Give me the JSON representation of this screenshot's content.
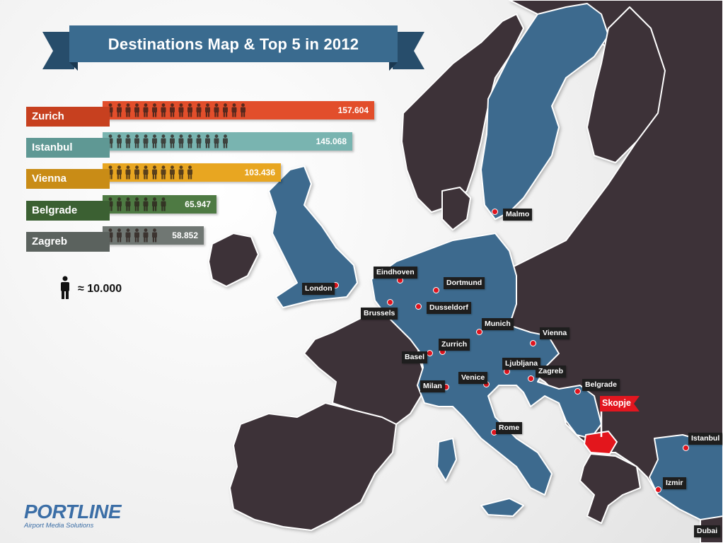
{
  "title": "Destinations Map & Top 5 in 2012",
  "chart_data": {
    "type": "bar",
    "orientation": "horizontal",
    "title": "Destinations Map & Top 5 in 2012",
    "categories": [
      "Zurich",
      "Istanbul",
      "Vienna",
      "Belgrade",
      "Zagreb"
    ],
    "values": [
      157604,
      145068,
      103436,
      65947,
      58852
    ],
    "value_labels": [
      "157.604",
      "145.068",
      "103.436",
      "65.947",
      "58.852"
    ],
    "person_icons": [
      16,
      14,
      10,
      7,
      6
    ],
    "colors": [
      "#e24e2b",
      "#79b4b0",
      "#e8a621",
      "#4e7a43",
      "#707773"
    ],
    "label_colors": [
      "#c7401f",
      "#5f9894",
      "#c98c16",
      "#3b6032",
      "#5b625e"
    ]
  },
  "legend": {
    "icon": "person-icon",
    "text": "≈ 10.000"
  },
  "map": {
    "home_city": "Skopje",
    "cities": [
      {
        "name": "Malmo"
      },
      {
        "name": "Eindhoven"
      },
      {
        "name": "London"
      },
      {
        "name": "Dortmund"
      },
      {
        "name": "Brussels"
      },
      {
        "name": "Dusseldorf"
      },
      {
        "name": "Munich"
      },
      {
        "name": "Vienna"
      },
      {
        "name": "Zurrich"
      },
      {
        "name": "Basel"
      },
      {
        "name": "Ljubljana"
      },
      {
        "name": "Zagreb"
      },
      {
        "name": "Venice"
      },
      {
        "name": "Milan"
      },
      {
        "name": "Belgrade"
      },
      {
        "name": "Rome"
      },
      {
        "name": "Istanbul"
      },
      {
        "name": "Izmir"
      },
      {
        "name": "Dubai"
      }
    ]
  },
  "logo": {
    "name": "PORTLINE",
    "tagline": "Airport Media Solutions"
  }
}
